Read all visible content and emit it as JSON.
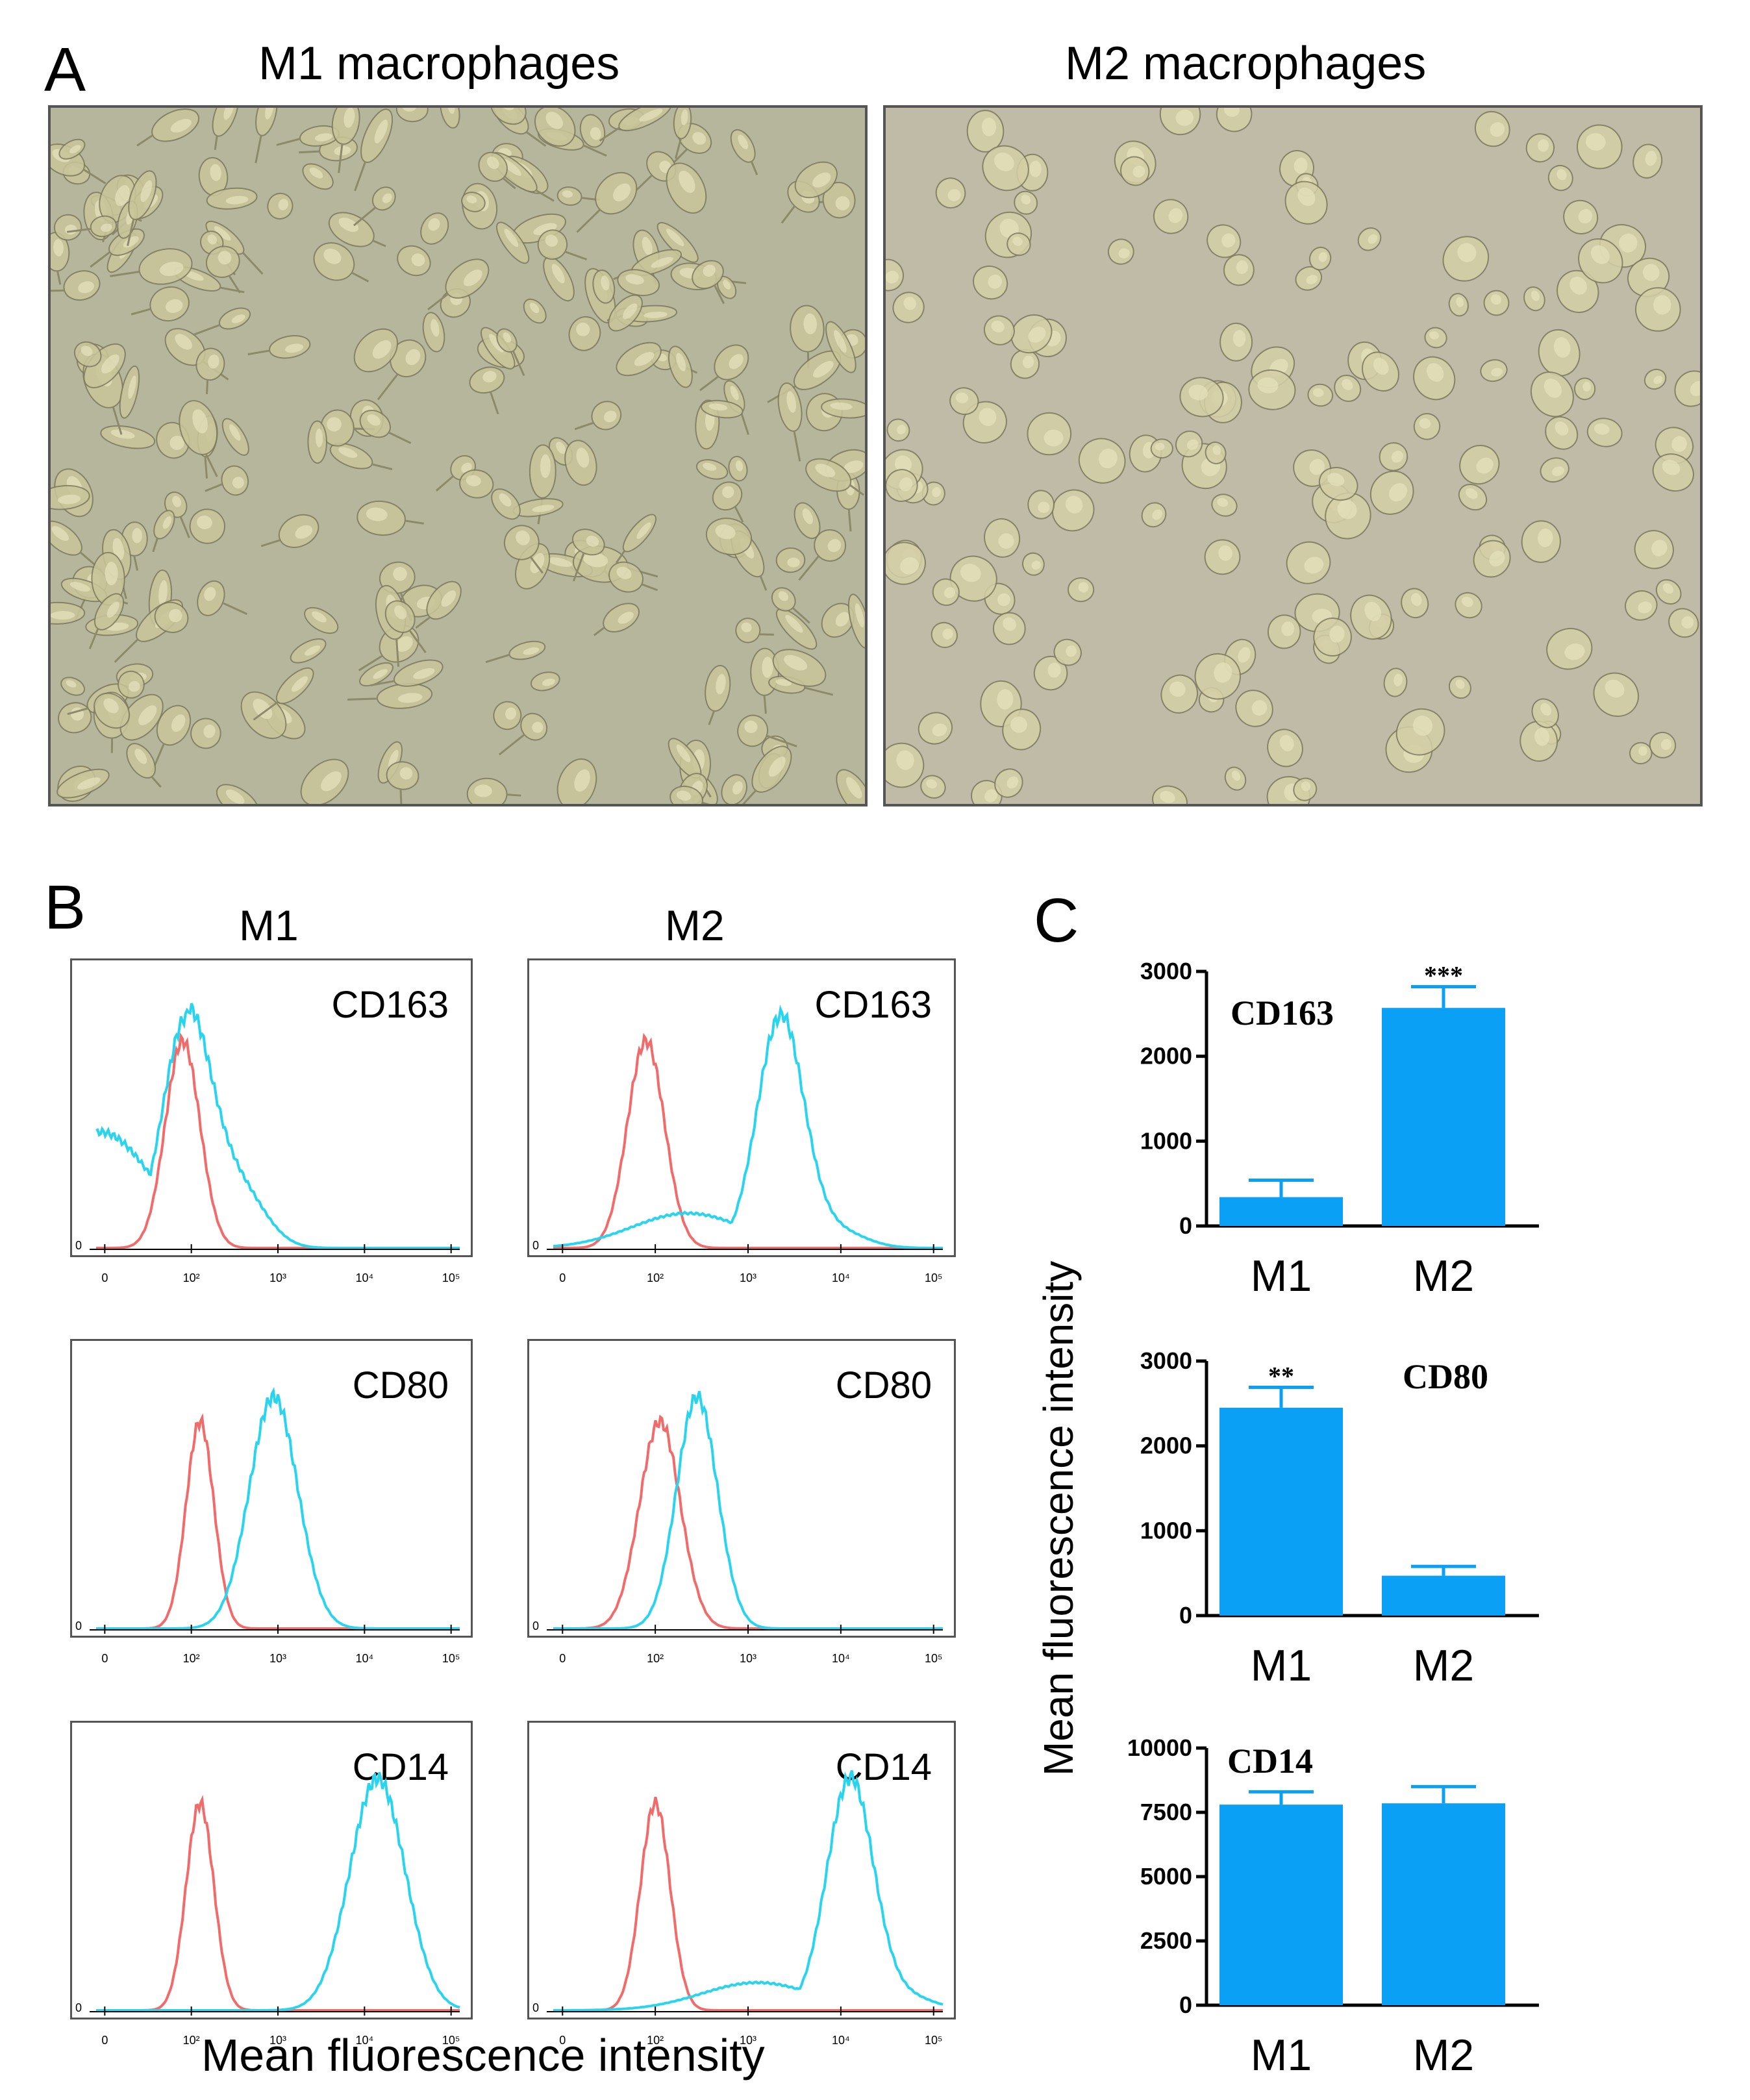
{
  "panel_letters": {
    "a": "A",
    "b": "B",
    "c": "C"
  },
  "panel_a": {
    "left_title": "M1 macrophages",
    "right_title": "M2 macrophages"
  },
  "panel_b": {
    "col_m1": "M1",
    "col_m2": "M2",
    "xlabel": "Mean fluorescence intensity",
    "tick_labels": [
      "0",
      "10²",
      "10³",
      "10⁴",
      "10⁵"
    ],
    "y_zero_label": "0",
    "colors": {
      "isotype": "#f26b6b",
      "marker": "#29d4ef"
    },
    "histograms": [
      {
        "row": 0,
        "col": 0,
        "marker": "CD163",
        "isotype_peak_log": 1.9,
        "isotype_width": 0.2,
        "marker_peak_log": 1.95,
        "marker_width": 0.28,
        "marker_tail": 0.5
      },
      {
        "row": 0,
        "col": 1,
        "marker": "CD163",
        "isotype_peak_log": 1.9,
        "isotype_width": 0.2,
        "marker_peak_log": 3.35,
        "marker_width": 0.25,
        "marker_tail": 0.15
      },
      {
        "row": 1,
        "col": 0,
        "marker": "CD80",
        "isotype_peak_log": 2.1,
        "isotype_width": 0.16,
        "marker_peak_log": 2.95,
        "marker_width": 0.28,
        "marker_tail": 0.0
      },
      {
        "row": 1,
        "col": 1,
        "marker": "CD80",
        "isotype_peak_log": 2.05,
        "isotype_width": 0.22,
        "marker_peak_log": 2.45,
        "marker_width": 0.22,
        "marker_tail": 0.0
      },
      {
        "row": 2,
        "col": 0,
        "marker": "CD14",
        "isotype_peak_log": 2.1,
        "isotype_width": 0.16,
        "marker_peak_log": 4.15,
        "marker_width": 0.32,
        "marker_tail": 0.0
      },
      {
        "row": 2,
        "col": 1,
        "marker": "CD14",
        "isotype_peak_log": 2.0,
        "isotype_width": 0.16,
        "marker_peak_log": 4.1,
        "marker_width": 0.25,
        "marker_tail": 0.12
      }
    ]
  },
  "panel_c": {
    "ylabel": "Mean fluorescence intensity",
    "bar_color": "#0aa0f5"
  },
  "chart_data": [
    {
      "type": "bar",
      "title": "CD163",
      "categories": [
        "M1",
        "M2"
      ],
      "values": [
        340,
        2570
      ],
      "errors": [
        200,
        250
      ],
      "significance": [
        "",
        "***"
      ],
      "ylim": [
        0,
        3000
      ],
      "yticks": [
        0,
        1000,
        2000,
        3000
      ],
      "ylabel": "Mean fluorescence intensity"
    },
    {
      "type": "bar",
      "title": "CD80",
      "categories": [
        "M1",
        "M2"
      ],
      "values": [
        2450,
        470
      ],
      "errors": [
        240,
        110
      ],
      "significance": [
        "**",
        ""
      ],
      "ylim": [
        0,
        3000
      ],
      "yticks": [
        0,
        1000,
        2000,
        3000
      ],
      "ylabel": "Mean fluorescence intensity"
    },
    {
      "type": "bar",
      "title": "CD14",
      "categories": [
        "M1",
        "M2"
      ],
      "values": [
        7800,
        7850
      ],
      "errors": [
        500,
        650
      ],
      "significance": [
        "",
        ""
      ],
      "ylim": [
        0,
        10000
      ],
      "yticks": [
        0,
        2500,
        5000,
        7500,
        10000
      ],
      "ylabel": "Mean fluorescence intensity"
    }
  ]
}
